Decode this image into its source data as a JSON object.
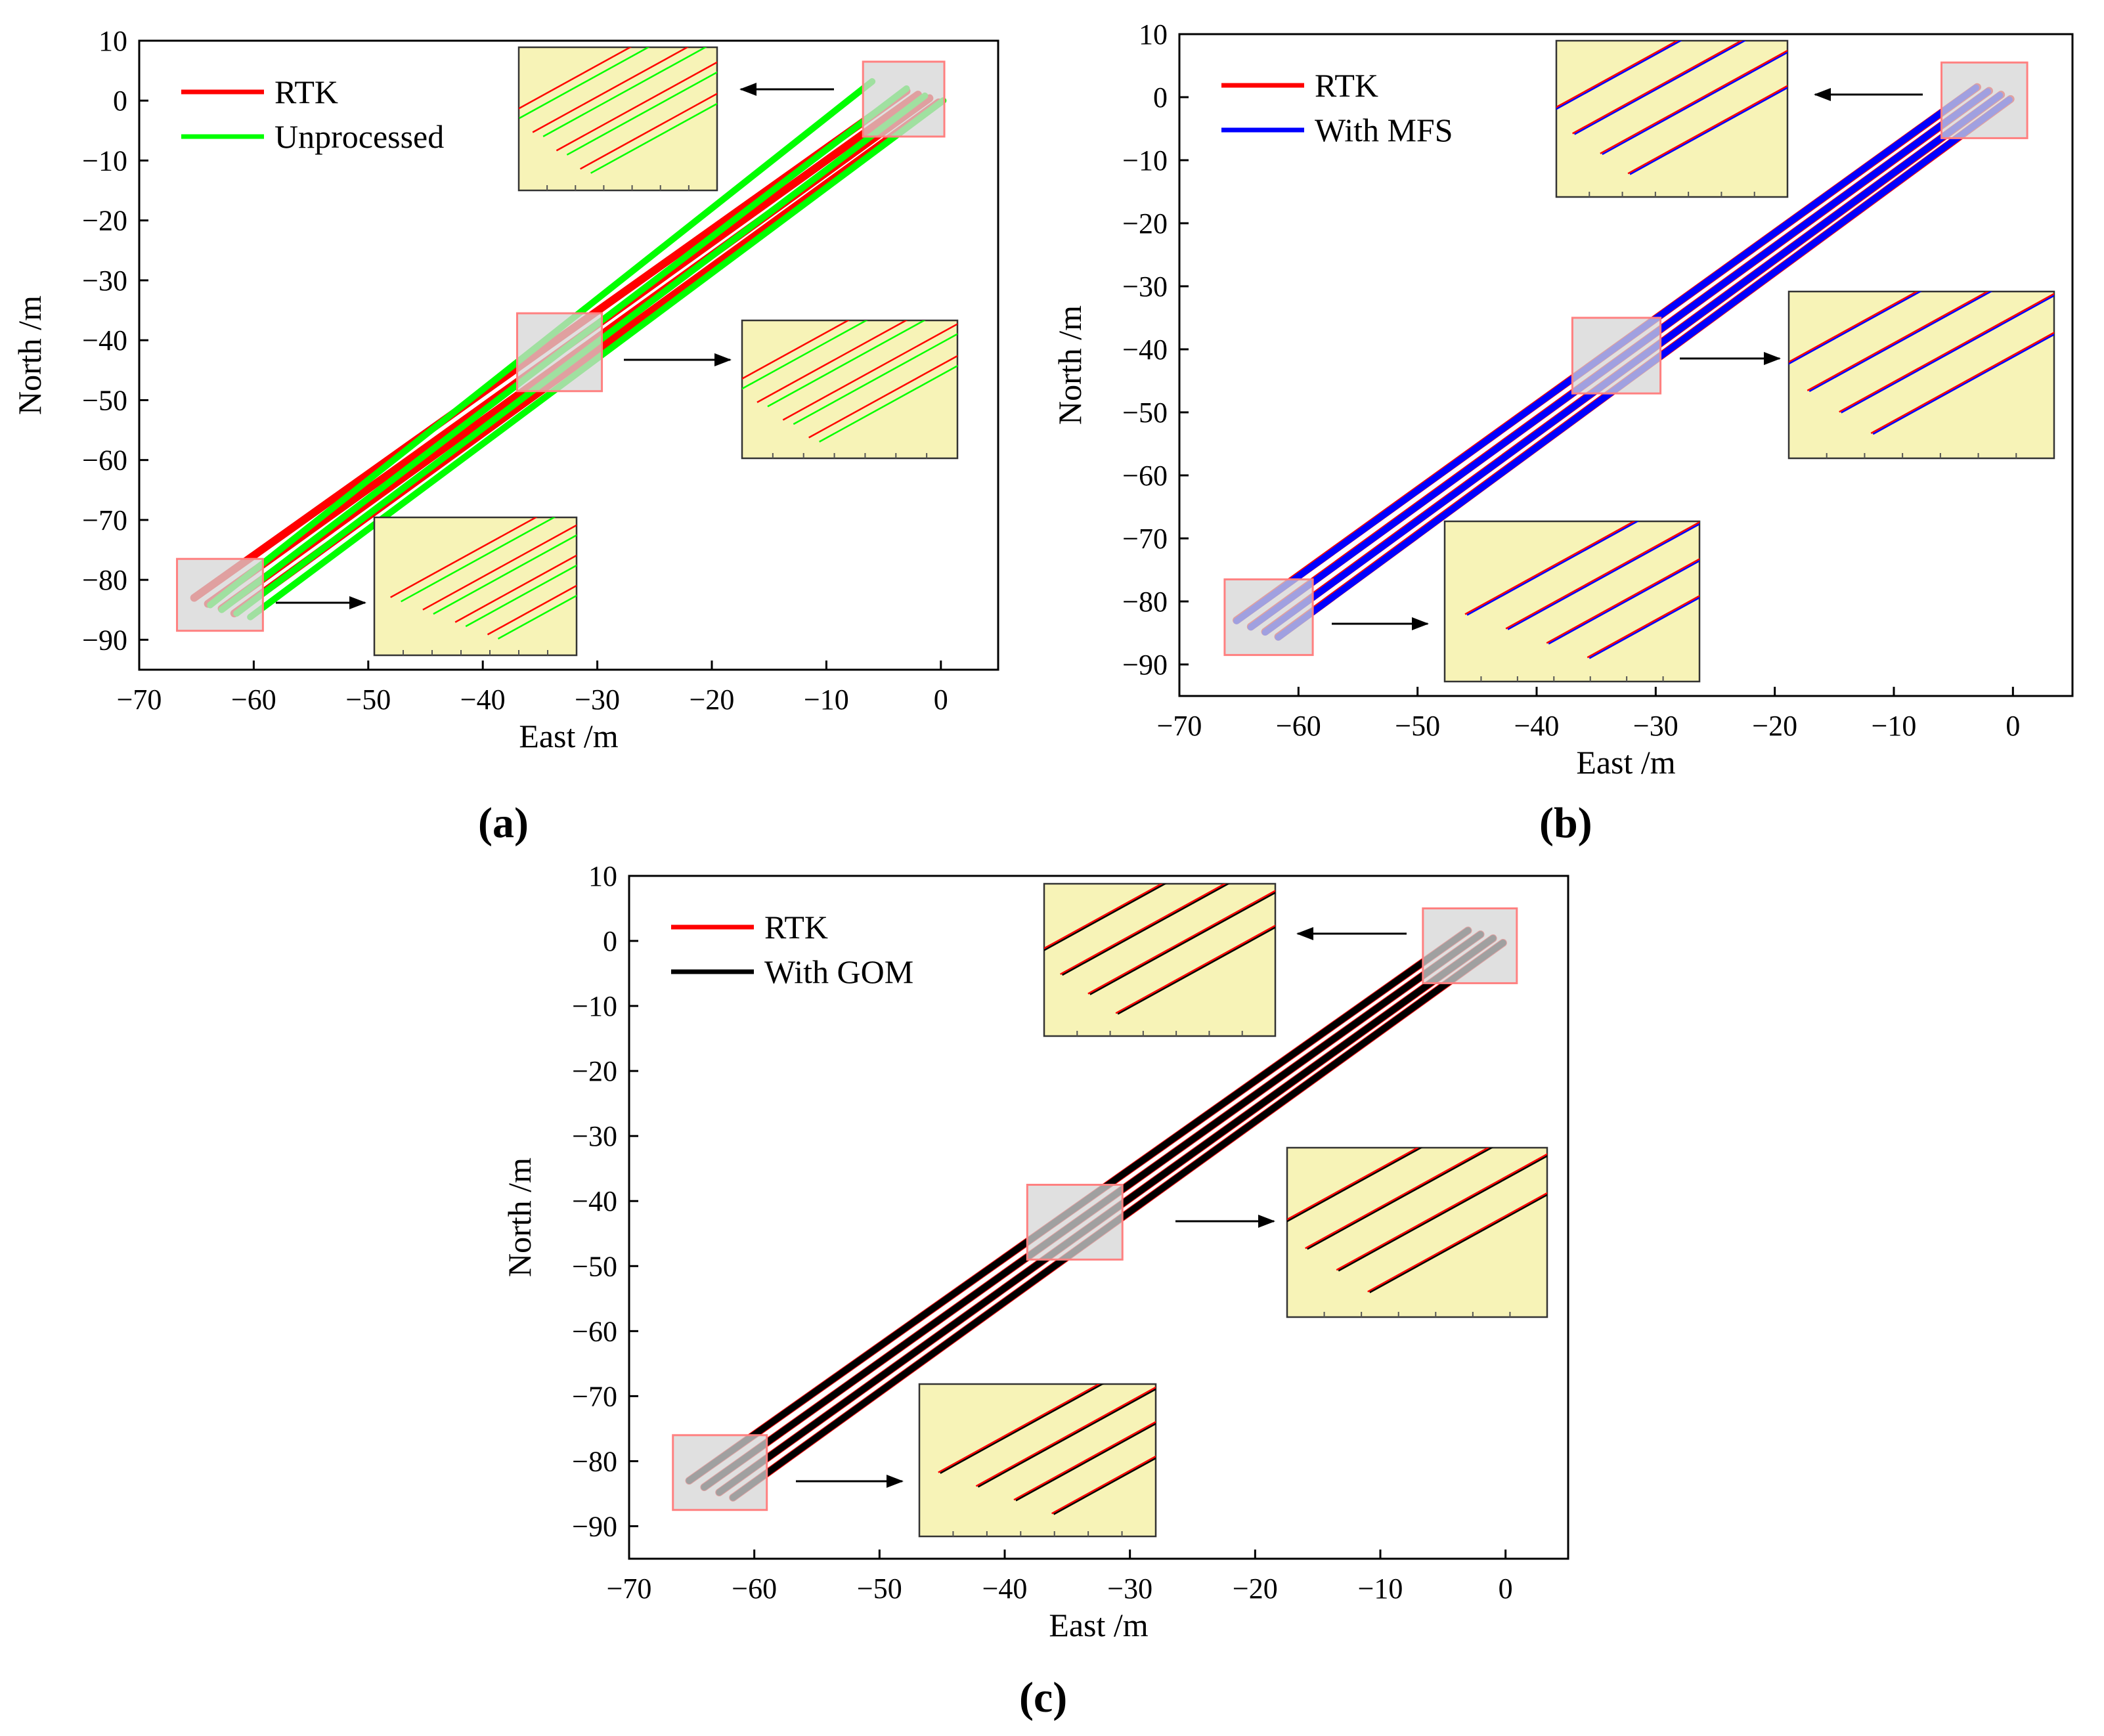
{
  "colors": {
    "rtk": "#ff0000",
    "unprocessed": "#00ff00",
    "mfs": "#0000ff",
    "gom": "#000000",
    "inset_bg": "#f7f3b7",
    "zoom_box_fill": "#d6d6d6",
    "zoom_box_stroke": "#ff8080"
  },
  "chart_data": [
    {
      "panel": "a",
      "type": "line",
      "caption": "(a)",
      "xlabel": "East /m",
      "ylabel": "North /m",
      "xlim": [
        -70,
        5
      ],
      "ylim": [
        -95,
        10
      ],
      "xticks": [
        -70,
        -60,
        -50,
        -40,
        -30,
        -20,
        -10,
        0
      ],
      "yticks": [
        10,
        0,
        -10,
        -20,
        -30,
        -40,
        -50,
        -60,
        -70,
        -80,
        -90
      ],
      "legend_placement": "top-left",
      "series": [
        {
          "name": "RTK",
          "color_key": "rtk",
          "lines": [
            [
              [
                -65.2,
                -83.0
              ],
              [
                -3.0,
                1.6
              ]
            ],
            [
              [
                -64.0,
                -84.0
              ],
              [
                -2.0,
                1.0
              ]
            ],
            [
              [
                -62.8,
                -84.8
              ],
              [
                -1.0,
                0.4
              ]
            ],
            [
              [
                -61.7,
                -85.6
              ],
              [
                -0.2,
                -0.3
              ]
            ]
          ]
        },
        {
          "name": "Unprocessed",
          "color_key": "unprocessed",
          "lines": [
            [
              [
                -63.8,
                -84.2
              ],
              [
                -6.0,
                3.2
              ]
            ],
            [
              [
                -62.8,
                -85.0
              ],
              [
                -3.0,
                2.0
              ]
            ],
            [
              [
                -61.5,
                -85.6
              ],
              [
                -1.4,
                0.8
              ]
            ],
            [
              [
                -60.3,
                -86.2
              ],
              [
                0.2,
                0.0
              ]
            ]
          ]
        }
      ],
      "zoom_regions": [
        {
          "x": [
            -6.8,
            0.3
          ],
          "y": [
            -6.0,
            6.5
          ],
          "arrow": "left"
        },
        {
          "x": [
            -37.0,
            -29.6
          ],
          "y": [
            -48.5,
            -35.5
          ],
          "arrow": "right"
        },
        {
          "x": [
            -66.7,
            -59.2
          ],
          "y": [
            -88.5,
            -76.5
          ],
          "arrow": "right"
        }
      ]
    },
    {
      "panel": "b",
      "type": "line",
      "caption": "(b)",
      "xlabel": "East /m",
      "ylabel": "North /m",
      "xlim": [
        -70,
        5
      ],
      "ylim": [
        -95,
        10
      ],
      "xticks": [
        -70,
        -60,
        -50,
        -40,
        -30,
        -20,
        -10,
        0
      ],
      "yticks": [
        10,
        0,
        -10,
        -20,
        -30,
        -40,
        -50,
        -60,
        -70,
        -80,
        -90
      ],
      "legend_placement": "top-left",
      "series": [
        {
          "name": "RTK",
          "color_key": "rtk",
          "lines": [
            [
              [
                -65.2,
                -83.0
              ],
              [
                -3.0,
                1.6
              ]
            ],
            [
              [
                -64.0,
                -84.0
              ],
              [
                -2.0,
                1.0
              ]
            ],
            [
              [
                -62.8,
                -84.8
              ],
              [
                -1.0,
                0.4
              ]
            ],
            [
              [
                -61.7,
                -85.6
              ],
              [
                -0.2,
                -0.3
              ]
            ]
          ]
        },
        {
          "name": "With MFS",
          "color_key": "mfs",
          "lines": [
            [
              [
                -65.2,
                -83.1
              ],
              [
                -3.1,
                1.5
              ]
            ],
            [
              [
                -64.0,
                -84.1
              ],
              [
                -2.1,
                0.9
              ]
            ],
            [
              [
                -62.8,
                -84.9
              ],
              [
                -1.1,
                0.3
              ]
            ],
            [
              [
                -61.7,
                -85.7
              ],
              [
                -0.3,
                -0.4
              ]
            ]
          ]
        }
      ],
      "zoom_regions": [
        {
          "x": [
            -6.0,
            1.2
          ],
          "y": [
            -6.5,
            5.5
          ],
          "arrow": "left"
        },
        {
          "x": [
            -37.0,
            -29.6
          ],
          "y": [
            -47.0,
            -35.0
          ],
          "arrow": "right"
        },
        {
          "x": [
            -66.2,
            -58.8
          ],
          "y": [
            -88.5,
            -76.5
          ],
          "arrow": "right"
        }
      ]
    },
    {
      "panel": "c",
      "type": "line",
      "caption": "(c)",
      "xlabel": "East /m",
      "ylabel": "North /m",
      "xlim": [
        -70,
        5
      ],
      "ylim": [
        -95,
        10
      ],
      "xticks": [
        -70,
        -60,
        -50,
        -40,
        -30,
        -20,
        -10,
        0
      ],
      "yticks": [
        10,
        0,
        -10,
        -20,
        -30,
        -40,
        -50,
        -60,
        -70,
        -80,
        -90
      ],
      "legend_placement": "top-left",
      "series": [
        {
          "name": "RTK",
          "color_key": "rtk",
          "lines": [
            [
              [
                -65.2,
                -83.0
              ],
              [
                -3.0,
                1.6
              ]
            ],
            [
              [
                -64.0,
                -84.0
              ],
              [
                -2.0,
                1.0
              ]
            ],
            [
              [
                -62.8,
                -84.8
              ],
              [
                -1.0,
                0.4
              ]
            ],
            [
              [
                -61.7,
                -85.6
              ],
              [
                -0.2,
                -0.3
              ]
            ]
          ]
        },
        {
          "name": "With GOM",
          "color_key": "gom",
          "lines": [
            [
              [
                -65.2,
                -83.0
              ],
              [
                -3.0,
                1.6
              ]
            ],
            [
              [
                -64.0,
                -84.0
              ],
              [
                -2.0,
                1.0
              ]
            ],
            [
              [
                -62.8,
                -84.8
              ],
              [
                -1.0,
                0.4
              ]
            ],
            [
              [
                -61.7,
                -85.6
              ],
              [
                -0.2,
                -0.3
              ]
            ]
          ]
        }
      ],
      "zoom_regions": [
        {
          "x": [
            -6.6,
            0.9
          ],
          "y": [
            -6.5,
            5.0
          ],
          "arrow": "left"
        },
        {
          "x": [
            -38.2,
            -30.6
          ],
          "y": [
            -49.0,
            -37.5
          ],
          "arrow": "right"
        },
        {
          "x": [
            -66.5,
            -59.0
          ],
          "y": [
            -87.5,
            -76.0
          ],
          "arrow": "right"
        }
      ]
    }
  ]
}
